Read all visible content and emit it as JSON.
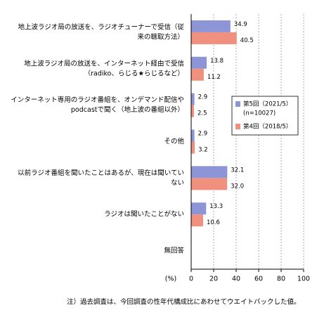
{
  "chart_data": {
    "type": "hbar",
    "categories": [
      [
        "地上波ラジオ局の放送を、ラジオチューナーで受信（従",
        "来の聴取方法）"
      ],
      [
        "地上波ラジオ局の放送を、インターネット経由で受信",
        "（radiko、らじる★らじるなど）"
      ],
      [
        "インターネット専用のラジオ番組を、オンデマンド配信や",
        "podcastで聞く（地上波の番組以外）"
      ],
      [
        "その他"
      ],
      [
        "以前ラジオ番組を聞いたことはあるが、現在は聞いてい",
        "ない"
      ],
      [
        "ラジオは聞いたことがない"
      ],
      [
        "無回答"
      ]
    ],
    "series": [
      {
        "name": "第5回（2021/5）",
        "name_note": "(n=10027)",
        "color": "#8e95d6",
        "values": [
          34.9,
          13.8,
          2.9,
          2.9,
          32.1,
          13.3,
          null
        ],
        "value_labels": [
          "34.9",
          "13.8",
          "2.9",
          "2.9",
          "32.1",
          "13.3",
          null
        ]
      },
      {
        "name": "第4回（2018/5）",
        "color": "#f0917f",
        "values": [
          40.5,
          11.2,
          2.5,
          3.2,
          32.0,
          10.6,
          null
        ],
        "value_labels": [
          "40.5",
          "11.2",
          "2.5",
          "3.2",
          "32.0",
          "10.6",
          null
        ]
      }
    ],
    "xlabel": "(%)",
    "xlim": [
      0,
      100
    ],
    "xticks": [
      0,
      20,
      40,
      60,
      80,
      100
    ],
    "grid": true,
    "note": "注）過去調査は、今回調査の性年代構成比にあわせてウエイトバックした値。"
  }
}
